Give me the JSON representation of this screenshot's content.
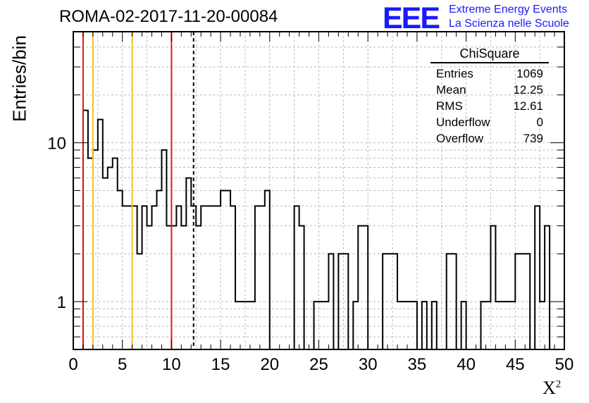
{
  "run_title": "ROMA-02-2017-11-20-00084",
  "logo": {
    "mark": "EEE",
    "line1": "Extreme Energy Events",
    "line2": "La Scienza nelle Scuole"
  },
  "colors": {
    "histogram": "#000000",
    "red_line": "#e8161c",
    "yellow_line": "#f5c11e",
    "grid": "#bbbbbb",
    "logo": "#1a1aff"
  },
  "stats": {
    "name": "ChiSquare",
    "rows": [
      {
        "label": "Entries",
        "value": "1069"
      },
      {
        "label": "Mean",
        "value": "12.25"
      },
      {
        "label": "RMS",
        "value": "12.61"
      },
      {
        "label": "Underflow",
        "value": "0"
      },
      {
        "label": "Overflow",
        "value": "739"
      }
    ]
  },
  "chart_data": {
    "type": "bar",
    "subtype": "step-histogram",
    "title": "ROMA-02-2017-11-20-00084",
    "xlabel": "X²",
    "ylabel": "Entries/bin",
    "xlim": [
      0,
      50
    ],
    "ylim": [
      0.5,
      50
    ],
    "yscale": "log",
    "grid": true,
    "bin_width": 0.5,
    "x_ticks": [
      0,
      5,
      10,
      15,
      20,
      25,
      30,
      35,
      40,
      45,
      50
    ],
    "y_ticks": [
      1,
      10
    ],
    "bin_values": [
      0,
      0,
      16,
      8,
      9,
      14,
      6,
      7,
      8,
      5,
      4,
      4,
      4,
      2,
      4,
      3,
      4,
      5,
      9,
      3,
      3,
      4,
      3,
      6,
      4,
      3,
      4,
      4,
      4,
      4,
      5,
      5,
      4,
      1,
      1,
      1,
      1,
      4,
      4,
      5,
      0,
      0,
      0,
      0,
      0,
      4,
      3,
      0,
      0,
      1,
      1,
      1,
      2,
      0,
      2,
      2,
      0,
      1,
      3,
      3,
      0,
      0,
      0,
      2,
      2,
      2,
      1,
      1,
      1,
      1,
      0,
      1,
      0,
      1,
      0,
      0,
      2,
      2,
      0,
      1,
      0,
      0,
      0,
      1,
      1,
      3,
      1,
      1,
      1,
      1,
      2,
      2,
      2,
      0,
      4,
      1,
      3,
      0,
      0,
      0
    ],
    "vertical_lines": [
      {
        "x": 1,
        "style": "solid",
        "color": "red"
      },
      {
        "x": 2,
        "style": "solid",
        "color": "yellow"
      },
      {
        "x": 6,
        "style": "solid",
        "color": "yellow"
      },
      {
        "x": 10,
        "style": "solid",
        "color": "red"
      },
      {
        "x": 12.25,
        "style": "dashed",
        "color": "black"
      }
    ]
  }
}
